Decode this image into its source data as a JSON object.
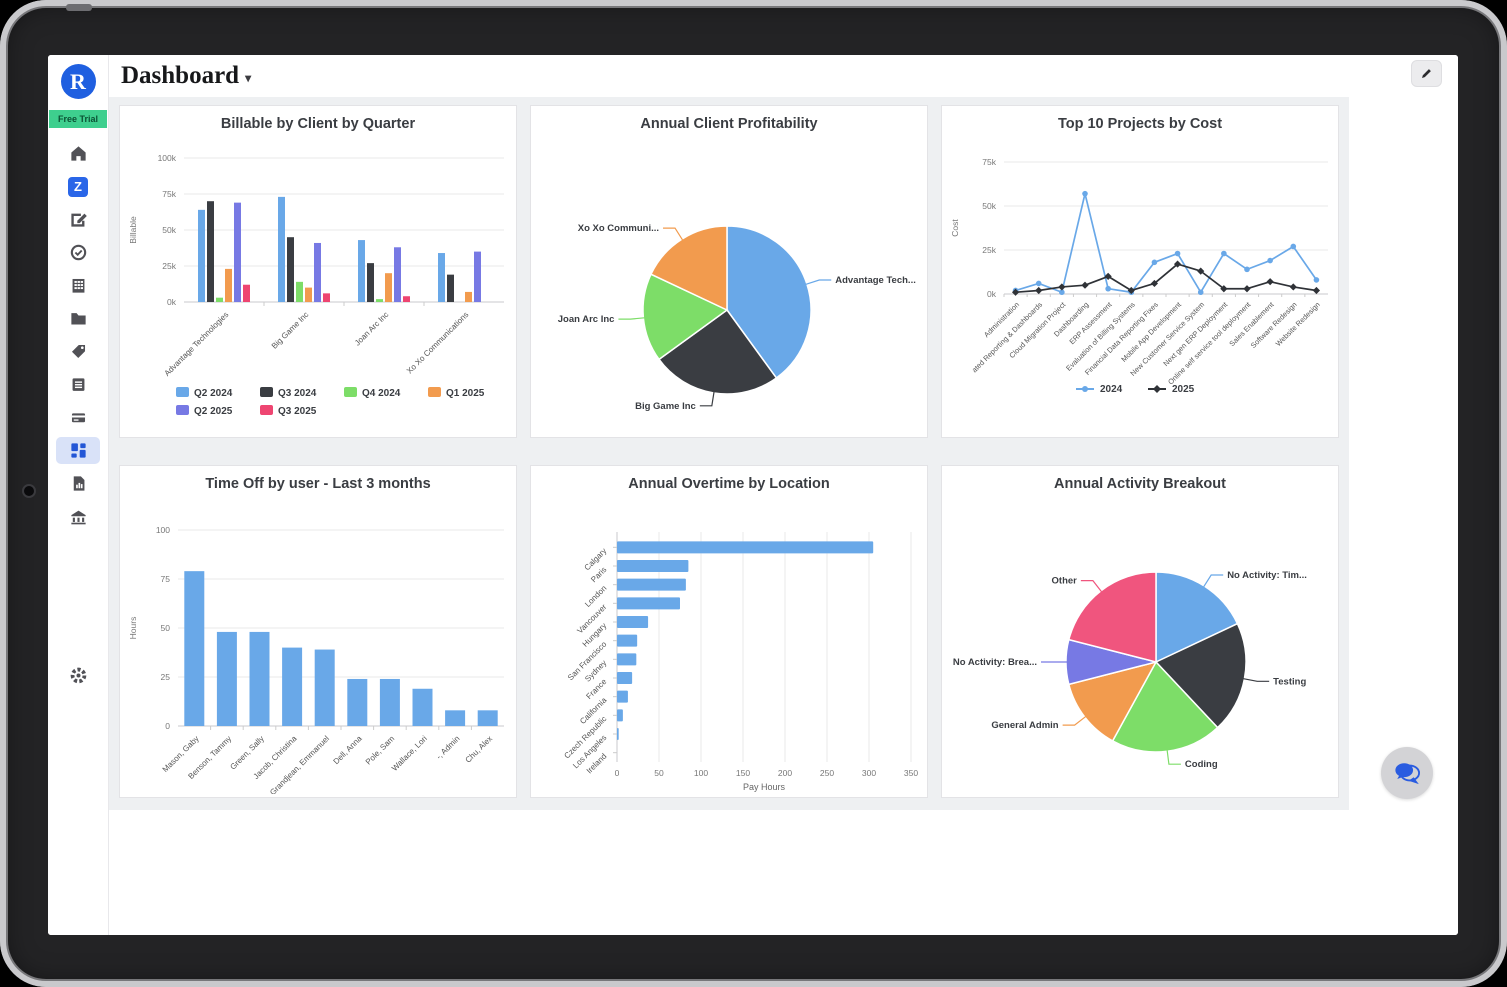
{
  "app": {
    "page_title": "Dashboard",
    "caret": "▾",
    "logo_letter": "R",
    "trial_badge": "Free Trial",
    "brand_color": "#1f5fe0",
    "trial_green": "#3ecf8e",
    "accent_blue": "#69a8e8"
  },
  "sidebar": {
    "z_tile": "Z",
    "icons": [
      "home-icon",
      "z-logo-icon",
      "timesheets-icon",
      "approvals-icon",
      "organization-icon",
      "projects-icon",
      "tags-icon",
      "invoices-icon",
      "payments-icon",
      "dashboards-icon",
      "reports-icon",
      "bank-icon",
      "settings-gear-icon"
    ],
    "active_item": "dashboards-icon"
  },
  "header": {
    "edit_icon": "pencil-icon"
  },
  "floating": {
    "chat_icon": "chat-bubbles-icon"
  },
  "chart_data": [
    {
      "type": "bar",
      "title": "Billable by Client by Quarter",
      "ylabel": "Billable",
      "ylim": [
        0,
        100
      ],
      "ytick_values": [
        0,
        25,
        50,
        75,
        100
      ],
      "ytick_labels": [
        "0k",
        "25k",
        "50k",
        "75k",
        "100k"
      ],
      "categories": [
        "Advantage Technologies",
        "Big Game Inc",
        "Joan Arc Inc",
        "Xo Xo Communications"
      ],
      "series": [
        {
          "name": "Q2 2024",
          "color": "#69a8e8",
          "values": [
            64,
            73,
            43,
            34
          ]
        },
        {
          "name": "Q3 2024",
          "color": "#3a3d42",
          "values": [
            70,
            45,
            27,
            19
          ]
        },
        {
          "name": "Q4 2024",
          "color": "#7ddd68",
          "values": [
            3,
            14,
            2,
            0
          ]
        },
        {
          "name": "Q1 2025",
          "color": "#f29b4e",
          "values": [
            23,
            10,
            20,
            7
          ]
        },
        {
          "name": "Q2 2025",
          "color": "#7779e4",
          "values": [
            69,
            41,
            38,
            35
          ]
        },
        {
          "name": "Q3 2025",
          "color": "#ee4571",
          "values": [
            12,
            6,
            4,
            0
          ]
        }
      ],
      "legend_position": "bottom",
      "grid": true
    },
    {
      "type": "pie",
      "title": "Annual Client Profitability",
      "slices": [
        {
          "label": "Advantage Tech...",
          "value": 40,
          "color": "#69a8e8"
        },
        {
          "label": "Big Game Inc",
          "value": 25,
          "color": "#3a3d42"
        },
        {
          "label": "Joan Arc Inc",
          "value": 17,
          "color": "#7ddd68"
        },
        {
          "label": "Xo Xo Communi...",
          "value": 18,
          "color": "#f29b4e"
        }
      ]
    },
    {
      "type": "line",
      "title": "Top 10 Projects by Cost",
      "ylabel": "Cost",
      "ylim": [
        0,
        75
      ],
      "ytick_values": [
        0,
        25,
        50,
        75
      ],
      "ytick_labels": [
        "0k",
        "25k",
        "50k",
        "75k"
      ],
      "categories": [
        "Administration",
        "ated Reporting & Dashboards",
        "Cloud Migration Project",
        "Dashboarding",
        "ERP Assessment",
        "Evaluation of Billing Systems",
        "Financial Data Reporting Fixes",
        "Mobile App Development",
        "New Customer Service System",
        "Next gen ERP Deployment",
        "Online self service tool deployment",
        "Sales Enablement",
        "Software Redesign",
        "Website Redesign"
      ],
      "series": [
        {
          "name": "2024",
          "color": "#69a8e8",
          "marker": "circle",
          "values": [
            2,
            6,
            1,
            57,
            3,
            1,
            18,
            23,
            1,
            23,
            14,
            19,
            27,
            8
          ]
        },
        {
          "name": "2025",
          "color": "#2f3237",
          "marker": "diamond",
          "values": [
            1,
            2,
            4,
            5,
            10,
            2,
            6,
            17,
            13,
            3,
            3,
            7,
            4,
            2
          ]
        }
      ],
      "legend_position": "bottom",
      "grid": true
    },
    {
      "type": "bar",
      "title": "Time Off by user - Last 3 months",
      "ylabel": "Hours",
      "ylim": [
        0,
        100
      ],
      "ytick_values": [
        0,
        25,
        50,
        75,
        100
      ],
      "ytick_labels": [
        "0",
        "25",
        "50",
        "75",
        "100"
      ],
      "categories": [
        "Mason, Gaby",
        "Benson, Tammy",
        "Green, Sally",
        "Jacob, Christina",
        "Grandjean, Emmanuel",
        "Dell, Anna",
        "Pole, Sam",
        "Wallace, Lori",
        "-, Admin",
        "Chu, Alex"
      ],
      "values": [
        79,
        48,
        48,
        40,
        39,
        24,
        24,
        19,
        8,
        8
      ],
      "color": "#69a8e8",
      "grid": true
    },
    {
      "type": "hbar",
      "title": "Annual Overtime by Location",
      "xlabel": "Pay Hours",
      "xlim": [
        0,
        350
      ],
      "xtick_values": [
        0,
        50,
        100,
        150,
        200,
        250,
        300,
        350
      ],
      "xtick_labels": [
        "0",
        "50",
        "100",
        "150",
        "200",
        "250",
        "300",
        "350"
      ],
      "categories": [
        "Calgary",
        "Paris",
        "London",
        "Vancouver",
        "Hungary",
        "San Francisco",
        "Sydney",
        "France",
        "California",
        "Czech Republic",
        "Los Angeles",
        "Ireland"
      ],
      "values": [
        305,
        85,
        82,
        75,
        37,
        24,
        23,
        18,
        13,
        7,
        2,
        0
      ],
      "color": "#69a8e8",
      "grid": true
    },
    {
      "type": "pie",
      "title": "Annual Activity Breakout",
      "slices": [
        {
          "label": "No Activity: Tim...",
          "value": 18,
          "color": "#69a8e8"
        },
        {
          "label": "Testing",
          "value": 20,
          "color": "#3a3d42"
        },
        {
          "label": "Coding",
          "value": 20,
          "color": "#7ddd68"
        },
        {
          "label": "General Admin",
          "value": 13,
          "color": "#f29b4e"
        },
        {
          "label": "No Activity: Brea...",
          "value": 8,
          "color": "#7779e4"
        },
        {
          "label": "Other",
          "value": 21,
          "color": "#f0557e"
        }
      ]
    }
  ]
}
